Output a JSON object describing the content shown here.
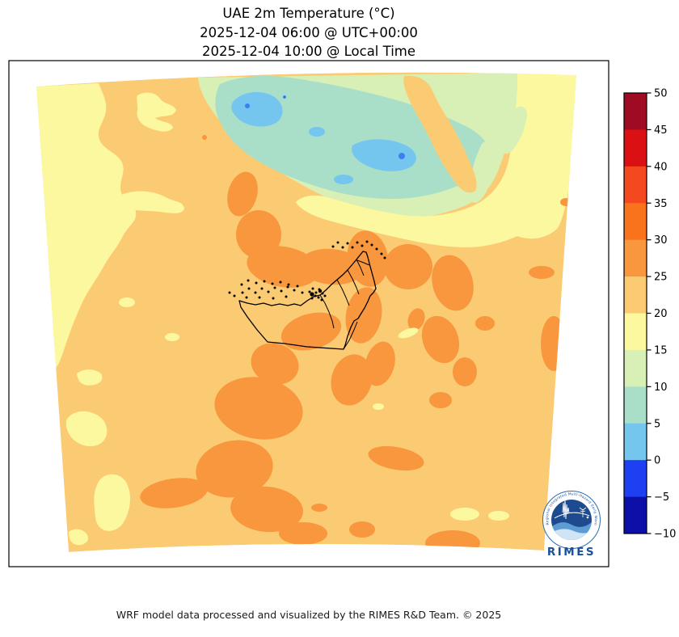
{
  "title": {
    "line1": "UAE 2m Temperature (°C)",
    "line2": "2025-12-04 06:00 @ UTC+00:00",
    "line3": "2025-12-04 10:00 @ Local Time"
  },
  "footer": {
    "credit": "WRF model data processed and visualized by the RIMES R&D Team. © 2025"
  },
  "logo": {
    "wordmark": "RIMES",
    "ring_text": "Regional Integrated Multi-Hazard Early Warning System",
    "accent": "#1B4F9C"
  },
  "palette": {
    "t45_50": "#A00B24",
    "t40_45": "#DB1013",
    "t35_40": "#F4481F",
    "t30_35": "#F9731D",
    "t25_30": "#F8973E",
    "t20_25": "#FBCB74",
    "t15_20": "#FCF8A0",
    "t10_15": "#D8F0B6",
    "t5_10": "#A9DFC9",
    "t0_5": "#74C6EE",
    "tm5_0": "#1E3FF2",
    "tm10_m5": "#0C10A6",
    "outline_black": "#000000"
  },
  "chart_data": {
    "type": "heatmap",
    "title": "UAE 2m Temperature (°C)",
    "subtitle_lines": [
      "2025-12-04 06:00 @ UTC+00:00",
      "2025-12-04 10:00 @ Local Time"
    ],
    "variable": "2m air temperature",
    "units": "°C",
    "model": "WRF",
    "region": "UAE and surrounding Arabian Gulf region (filled-contour map with UAE borders)",
    "colorbar": {
      "orientation": "vertical",
      "position": "right",
      "min": -10,
      "max": 50,
      "interval": 5,
      "ticks": [
        50,
        45,
        40,
        35,
        30,
        25,
        20,
        15,
        10,
        5,
        0,
        -5,
        -10
      ],
      "colors_high_to_low": [
        "#A00B24",
        "#DB1013",
        "#F4481F",
        "#F9731D",
        "#F8973E",
        "#FBCB74",
        "#FCF8A0",
        "#D8F0B6",
        "#A9DFC9",
        "#74C6EE",
        "#1E3FF2",
        "#0C10A6"
      ]
    },
    "map_observations": [
      {
        "area": "most of the domain (desert interior)",
        "temperature_c": "20-25"
      },
      {
        "area": "southern Gulf waters, eastern UAE and central desert bands",
        "temperature_c": "25-30"
      },
      {
        "area": "mountain band across the north (top-center)",
        "temperature_c": "5-15"
      },
      {
        "area": "coldest pockets inside the northern mountain band",
        "temperature_c": "0-5"
      },
      {
        "area": "western edge, northeast corner and scattered patches",
        "temperature_c": "15-20"
      }
    ]
  }
}
